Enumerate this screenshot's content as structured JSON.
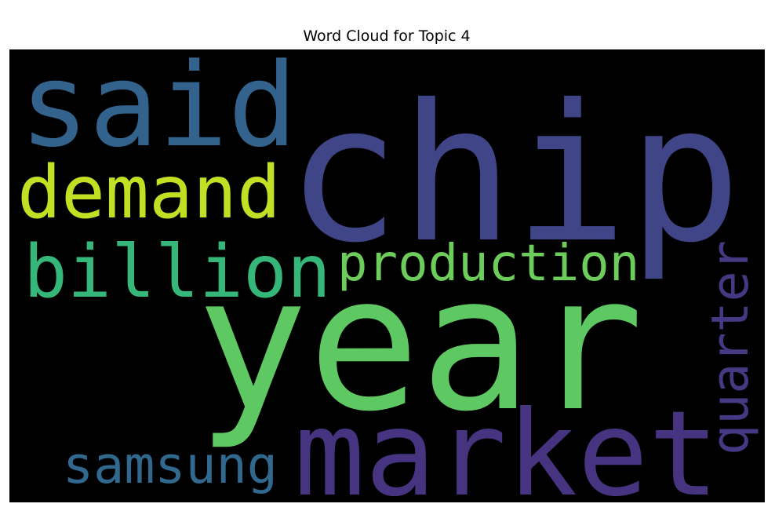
{
  "chart_data": {
    "type": "wordcloud",
    "title": "Word Cloud for Topic 4",
    "background": "#000000",
    "words": [
      {
        "text": "chip",
        "color": "#404588"
      },
      {
        "text": "said",
        "color": "#33638d"
      },
      {
        "text": "demand",
        "color": "#c2df23"
      },
      {
        "text": "billion",
        "color": "#35b779"
      },
      {
        "text": "production",
        "color": "#6ccd5a"
      },
      {
        "text": "year",
        "color": "#5ec962"
      },
      {
        "text": "market",
        "color": "#463480"
      },
      {
        "text": "samsung",
        "color": "#31688e"
      },
      {
        "text": "quarter",
        "color": "#443a83"
      }
    ]
  }
}
